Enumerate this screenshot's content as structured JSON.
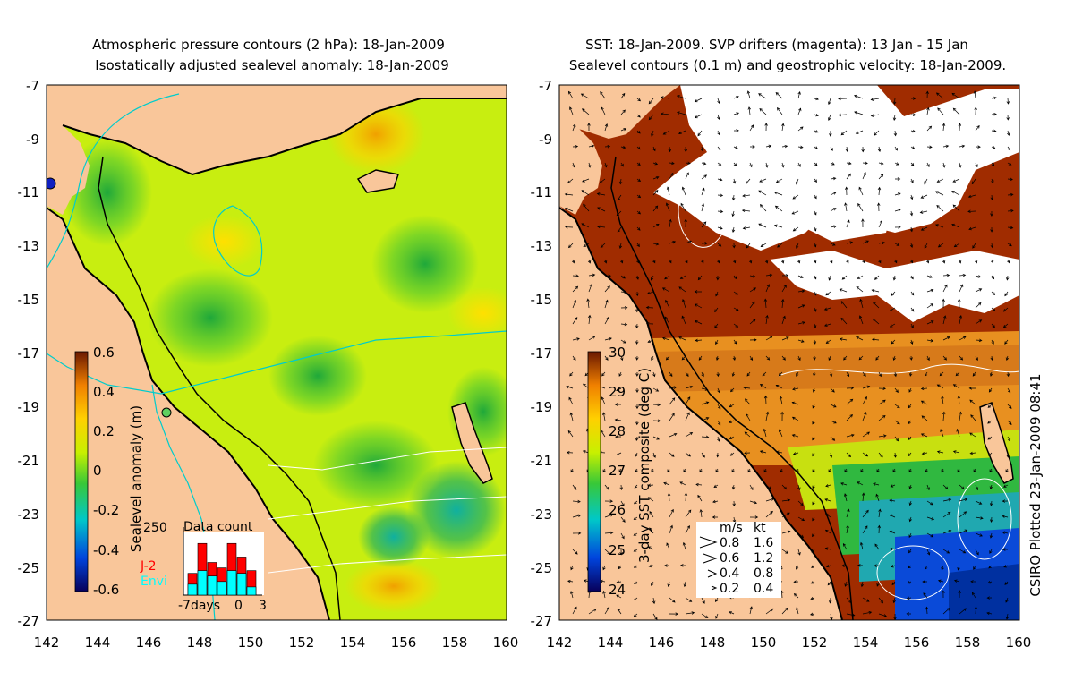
{
  "left_panel": {
    "title_line1": "Atmospheric pressure contours (2 hPa): 18-Jan-2009",
    "title_line2": "Isostatically adjusted sealevel anomaly: 18-Jan-2009",
    "colorbar_label": "Sealevel anomaly (m)",
    "colorbar_ticks": [
      "0.6",
      "0.4",
      "0.2",
      "0",
      "-0.2",
      "-0.4",
      "-0.6"
    ],
    "data_count": {
      "title": "Data count",
      "ymax_label": "250",
      "legend_j2": "J-2",
      "legend_envi": "Envi",
      "x_labels": [
        "-7days",
        "0",
        "3"
      ],
      "bins_j2": [
        80,
        190,
        120,
        100,
        190,
        140,
        90
      ],
      "bins_envi": [
        40,
        90,
        70,
        50,
        90,
        80,
        30
      ],
      "colors": {
        "j2": "#ff0000",
        "envi": "#00ffff"
      }
    }
  },
  "right_panel": {
    "title_line1": "SST: 18-Jan-2009. SVP drifters (magenta): 13 Jan - 15 Jan",
    "title_line2": "Sealevel contours (0.1 m) and geostrophic velocity: 18-Jan-2009.",
    "colorbar_label": "3-day SST composite (deg C)",
    "colorbar_ticks": [
      "30",
      "29",
      "28",
      "27",
      "26",
      "25",
      "24"
    ],
    "velocity_legend": {
      "header_ms": "m/s",
      "header_kt": "kt",
      "rows": [
        {
          "ms": "0.8",
          "kt": "1.6"
        },
        {
          "ms": "0.6",
          "kt": "1.2"
        },
        {
          "ms": "0.4",
          "kt": "0.8"
        },
        {
          "ms": "0.2",
          "kt": "0.4"
        }
      ]
    }
  },
  "axes": {
    "lat_labels": [
      "-7",
      "-9",
      "-11",
      "-13",
      "-15",
      "-17",
      "-19",
      "-21",
      "-23",
      "-25",
      "-27"
    ],
    "lon_labels": [
      "142",
      "144",
      "146",
      "148",
      "150",
      "152",
      "154",
      "156",
      "158",
      "160"
    ],
    "lat_range": [
      -27,
      -7
    ],
    "lon_range": [
      142,
      160
    ]
  },
  "credit": "CSIRO Plotted 23-Jan-2009 08:41",
  "colors": {
    "land": "#f9c69a",
    "sla_scale": [
      "#08005a",
      "#0044dd",
      "#00c8c8",
      "#38c838",
      "#c8f000",
      "#ffd000",
      "#f08000",
      "#6a1800"
    ],
    "sst_scale": [
      "#08005a",
      "#0044dd",
      "#00c8c8",
      "#38c838",
      "#c8f000",
      "#ffd000",
      "#f08000",
      "#6a1800"
    ],
    "cloud": "#ffffff"
  }
}
